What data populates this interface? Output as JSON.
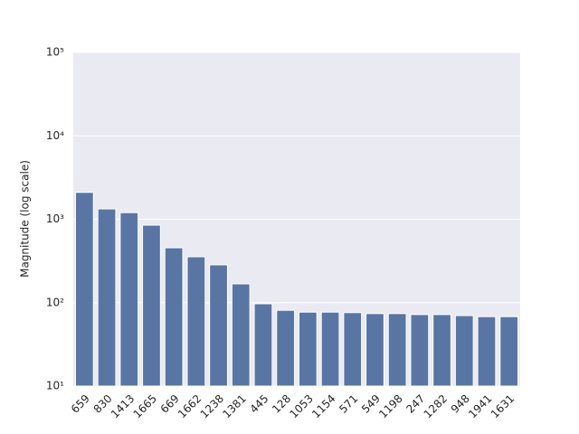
{
  "chart_data": {
    "type": "bar",
    "y_label": "Magnitude (log scale)",
    "categories": [
      "659",
      "830",
      "1413",
      "1665",
      "669",
      "1662",
      "1238",
      "1381",
      "445",
      "128",
      "1053",
      "1154",
      "571",
      "549",
      "1198",
      "247",
      "1282",
      "948",
      "1941",
      "1631"
    ],
    "values": [
      2100,
      1330,
      1200,
      850,
      455,
      355,
      284,
      168,
      97,
      81,
      77,
      77,
      76,
      74,
      74,
      72,
      72,
      70,
      68,
      68
    ],
    "color": "#5975a4",
    "log_y": true,
    "grid": true,
    "ylim": [
      10,
      100000
    ],
    "yticks": [
      {
        "value": 10,
        "label": "10¹"
      },
      {
        "value": 100,
        "label": "10²"
      },
      {
        "value": 1000,
        "label": "10³"
      },
      {
        "value": 10000,
        "label": "10⁴"
      },
      {
        "value": 100000,
        "label": "10⁵"
      }
    ]
  }
}
